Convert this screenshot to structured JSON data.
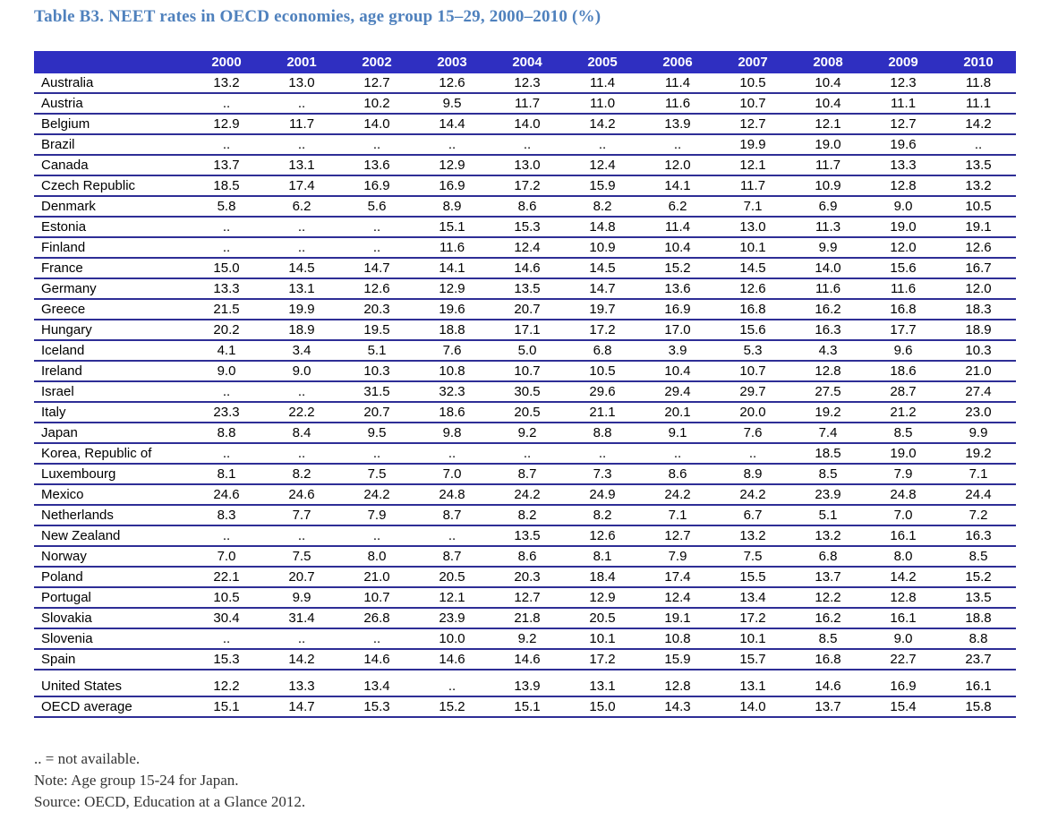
{
  "title": "Table B3. NEET rates in OECD economies, age group 15–29, 2000–2010 (%)",
  "colors": {
    "header_background": "#2f2fc1",
    "header_text": "#ffffff",
    "row_border": "#2e2e96",
    "title_text": "#4f81bd"
  },
  "chart_data": {
    "type": "table",
    "title": "Table B3. NEET rates in OECD economies, age group 15–29, 2000–2010 (%)",
    "columns": [
      "2000",
      "2001",
      "2002",
      "2003",
      "2004",
      "2005",
      "2006",
      "2007",
      "2008",
      "2009",
      "2010"
    ],
    "rows": [
      {
        "country": "Australia",
        "values": [
          "13.2",
          "13.0",
          "12.7",
          "12.6",
          "12.3",
          "11.4",
          "11.4",
          "10.5",
          "10.4",
          "12.3",
          "11.8"
        ]
      },
      {
        "country": "Austria",
        "values": [
          "..",
          "..",
          "10.2",
          "9.5",
          "11.7",
          "11.0",
          "11.6",
          "10.7",
          "10.4",
          "11.1",
          "11.1"
        ]
      },
      {
        "country": "Belgium",
        "values": [
          "12.9",
          "11.7",
          "14.0",
          "14.4",
          "14.0",
          "14.2",
          "13.9",
          "12.7",
          "12.1",
          "12.7",
          "14.2"
        ]
      },
      {
        "country": "Brazil",
        "values": [
          "..",
          "..",
          "..",
          "..",
          "..",
          "..",
          "..",
          "19.9",
          "19.0",
          "19.6",
          ".."
        ]
      },
      {
        "country": "Canada",
        "values": [
          "13.7",
          "13.1",
          "13.6",
          "12.9",
          "13.0",
          "12.4",
          "12.0",
          "12.1",
          "11.7",
          "13.3",
          "13.5"
        ]
      },
      {
        "country": "Czech Republic",
        "values": [
          "18.5",
          "17.4",
          "16.9",
          "16.9",
          "17.2",
          "15.9",
          "14.1",
          "11.7",
          "10.9",
          "12.8",
          "13.2"
        ]
      },
      {
        "country": "Denmark",
        "values": [
          "5.8",
          "6.2",
          "5.6",
          "8.9",
          "8.6",
          "8.2",
          "6.2",
          "7.1",
          "6.9",
          "9.0",
          "10.5"
        ]
      },
      {
        "country": "Estonia",
        "values": [
          "..",
          "..",
          "..",
          "15.1",
          "15.3",
          "14.8",
          "11.4",
          "13.0",
          "11.3",
          "19.0",
          "19.1"
        ]
      },
      {
        "country": "Finland",
        "values": [
          "..",
          "..",
          "..",
          "11.6",
          "12.4",
          "10.9",
          "10.4",
          "10.1",
          "9.9",
          "12.0",
          "12.6"
        ]
      },
      {
        "country": "France",
        "values": [
          "15.0",
          "14.5",
          "14.7",
          "14.1",
          "14.6",
          "14.5",
          "15.2",
          "14.5",
          "14.0",
          "15.6",
          "16.7"
        ]
      },
      {
        "country": "Germany",
        "values": [
          "13.3",
          "13.1",
          "12.6",
          "12.9",
          "13.5",
          "14.7",
          "13.6",
          "12.6",
          "11.6",
          "11.6",
          "12.0"
        ]
      },
      {
        "country": "Greece",
        "values": [
          "21.5",
          "19.9",
          "20.3",
          "19.6",
          "20.7",
          "19.7",
          "16.9",
          "16.8",
          "16.2",
          "16.8",
          "18.3"
        ]
      },
      {
        "country": "Hungary",
        "values": [
          "20.2",
          "18.9",
          "19.5",
          "18.8",
          "17.1",
          "17.2",
          "17.0",
          "15.6",
          "16.3",
          "17.7",
          "18.9"
        ]
      },
      {
        "country": "Iceland",
        "values": [
          "4.1",
          "3.4",
          "5.1",
          "7.6",
          "5.0",
          "6.8",
          "3.9",
          "5.3",
          "4.3",
          "9.6",
          "10.3"
        ]
      },
      {
        "country": "Ireland",
        "values": [
          "9.0",
          "9.0",
          "10.3",
          "10.8",
          "10.7",
          "10.5",
          "10.4",
          "10.7",
          "12.8",
          "18.6",
          "21.0"
        ]
      },
      {
        "country": "Israel",
        "values": [
          "..",
          "..",
          "31.5",
          "32.3",
          "30.5",
          "29.6",
          "29.4",
          "29.7",
          "27.5",
          "28.7",
          "27.4"
        ]
      },
      {
        "country": "Italy",
        "values": [
          "23.3",
          "22.2",
          "20.7",
          "18.6",
          "20.5",
          "21.1",
          "20.1",
          "20.0",
          "19.2",
          "21.2",
          "23.0"
        ]
      },
      {
        "country": "Japan",
        "values": [
          "8.8",
          "8.4",
          "9.5",
          "9.8",
          "9.2",
          "8.8",
          "9.1",
          "7.6",
          "7.4",
          "8.5",
          "9.9"
        ]
      },
      {
        "country": "Korea, Republic of",
        "values": [
          "..",
          "..",
          "..",
          "..",
          "..",
          "..",
          "..",
          "..",
          "18.5",
          "19.0",
          "19.2"
        ]
      },
      {
        "country": "Luxembourg",
        "values": [
          "8.1",
          "8.2",
          "7.5",
          "7.0",
          "8.7",
          "7.3",
          "8.6",
          "8.9",
          "8.5",
          "7.9",
          "7.1"
        ]
      },
      {
        "country": "Mexico",
        "values": [
          "24.6",
          "24.6",
          "24.2",
          "24.8",
          "24.2",
          "24.9",
          "24.2",
          "24.2",
          "23.9",
          "24.8",
          "24.4"
        ]
      },
      {
        "country": "Netherlands",
        "values": [
          "8.3",
          "7.7",
          "7.9",
          "8.7",
          "8.2",
          "8.2",
          "7.1",
          "6.7",
          "5.1",
          "7.0",
          "7.2"
        ]
      },
      {
        "country": "New Zealand",
        "values": [
          "..",
          "..",
          "..",
          "..",
          "13.5",
          "12.6",
          "12.7",
          "13.2",
          "13.2",
          "16.1",
          "16.3"
        ]
      },
      {
        "country": "Norway",
        "values": [
          "7.0",
          "7.5",
          "8.0",
          "8.7",
          "8.6",
          "8.1",
          "7.9",
          "7.5",
          "6.8",
          "8.0",
          "8.5"
        ]
      },
      {
        "country": "Poland",
        "values": [
          "22.1",
          "20.7",
          "21.0",
          "20.5",
          "20.3",
          "18.4",
          "17.4",
          "15.5",
          "13.7",
          "14.2",
          "15.2"
        ]
      },
      {
        "country": "Portugal",
        "values": [
          "10.5",
          "9.9",
          "10.7",
          "12.1",
          "12.7",
          "12.9",
          "12.4",
          "13.4",
          "12.2",
          "12.8",
          "13.5"
        ]
      },
      {
        "country": "Slovakia",
        "values": [
          "30.4",
          "31.4",
          "26.8",
          "23.9",
          "21.8",
          "20.5",
          "19.1",
          "17.2",
          "16.2",
          "16.1",
          "18.8"
        ]
      },
      {
        "country": "Slovenia",
        "values": [
          "..",
          "..",
          "..",
          "10.0",
          "9.2",
          "10.1",
          "10.8",
          "10.1",
          "8.5",
          "9.0",
          "8.8"
        ]
      },
      {
        "country": "Spain",
        "values": [
          "15.3",
          "14.2",
          "14.6",
          "14.6",
          "14.6",
          "17.2",
          "15.9",
          "15.7",
          "16.8",
          "22.7",
          "23.7"
        ]
      }
    ],
    "summary_rows": [
      {
        "country": "United States",
        "values": [
          "12.2",
          "13.3",
          "13.4",
          "..",
          "13.9",
          "13.1",
          "12.8",
          "13.1",
          "14.6",
          "16.9",
          "16.1"
        ]
      },
      {
        "country": "OECD average",
        "values": [
          "15.1",
          "14.7",
          "15.3",
          "15.2",
          "15.1",
          "15.0",
          "14.3",
          "14.0",
          "13.7",
          "15.4",
          "15.8"
        ]
      }
    ]
  },
  "notes": {
    "availability": ".. = not available.",
    "japan_note": "Note: Age group 15-24 for Japan.",
    "source": "Source: OECD, Education at a Glance 2012."
  }
}
